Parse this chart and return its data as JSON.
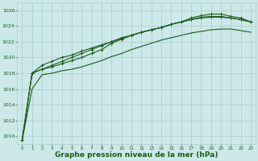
{
  "bg_color": "#cce8e8",
  "grid_color": "#aacccc",
  "line_color": "#1a5c1a",
  "title": "Graphe pression niveau de la mer (hPa)",
  "title_fontsize": 6.5,
  "xlim": [
    -0.5,
    23.5
  ],
  "ylim": [
    1009.0,
    1027.0
  ],
  "yticks": [
    1010,
    1012,
    1014,
    1016,
    1018,
    1020,
    1022,
    1024,
    1026
  ],
  "xticks": [
    0,
    1,
    2,
    3,
    4,
    5,
    6,
    7,
    8,
    9,
    10,
    11,
    12,
    13,
    14,
    15,
    16,
    17,
    18,
    19,
    20,
    21,
    22,
    23
  ],
  "series": [
    [
      1009.5,
      1016.0,
      1017.8,
      1018.0,
      1018.3,
      1018.5,
      1018.8,
      1019.2,
      1019.6,
      1020.1,
      1020.5,
      1021.0,
      1021.4,
      1021.8,
      1022.2,
      1022.5,
      1022.8,
      1023.1,
      1023.3,
      1023.5,
      1023.6,
      1023.6,
      1023.4,
      1023.2
    ],
    [
      1009.5,
      1018.0,
      1018.5,
      1018.8,
      1019.2,
      1019.6,
      1020.0,
      1020.5,
      1021.0,
      1021.8,
      1022.3,
      1022.8,
      1023.2,
      1023.5,
      1023.8,
      1024.2,
      1024.5,
      1024.8,
      1025.0,
      1025.1,
      1025.1,
      1025.0,
      1024.8,
      1024.5
    ],
    [
      1009.5,
      1018.0,
      1018.5,
      1019.0,
      1019.5,
      1020.0,
      1020.5,
      1021.0,
      1021.5,
      1022.0,
      1022.5,
      1022.8,
      1023.2,
      1023.5,
      1023.8,
      1024.2,
      1024.5,
      1024.8,
      1025.1,
      1025.2,
      1025.2,
      1025.0,
      1024.8,
      1024.5
    ],
    [
      1009.5,
      1018.0,
      1019.0,
      1019.5,
      1020.0,
      1020.3,
      1020.8,
      1021.2,
      1021.6,
      1022.0,
      1022.4,
      1022.8,
      1023.2,
      1023.5,
      1023.8,
      1024.2,
      1024.5,
      1025.0,
      1025.3,
      1025.5,
      1025.5,
      1025.2,
      1025.0,
      1024.5
    ]
  ]
}
